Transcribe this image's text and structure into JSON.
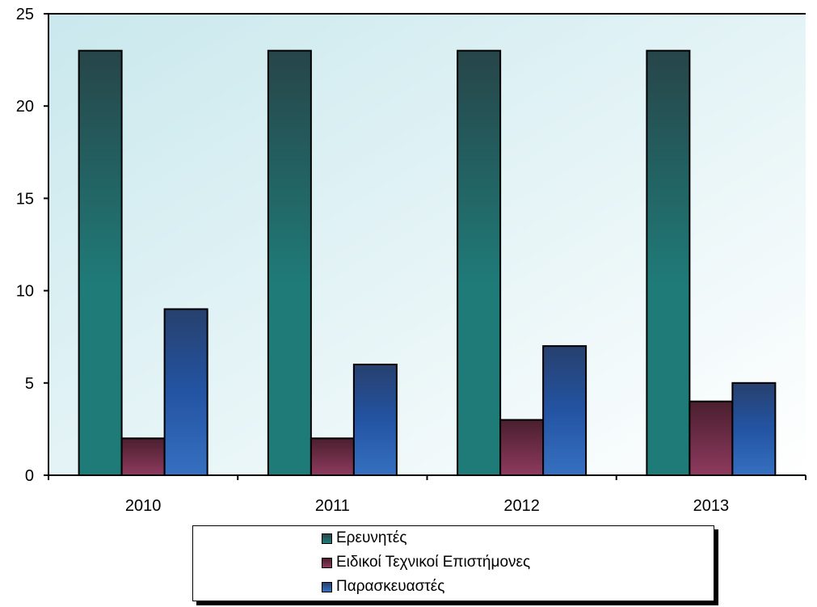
{
  "chart_data": {
    "type": "bar",
    "categories": [
      "2010",
      "2011",
      "2012",
      "2013"
    ],
    "series": [
      {
        "name": "Ερευνητές",
        "values": [
          23,
          23,
          23,
          23
        ],
        "color": "#1f7b78"
      },
      {
        "name": "Ειδικοί Τεχνικοί Επιστήμονες",
        "values": [
          2,
          2,
          3,
          4
        ],
        "color": "#7a2c4a"
      },
      {
        "name": "Παρασκευαστές",
        "values": [
          9,
          6,
          7,
          5
        ],
        "color": "#2a5aa8"
      }
    ],
    "ylim": [
      0,
      25
    ],
    "yticks": [
      0,
      5,
      10,
      15,
      20,
      25
    ],
    "title": "",
    "xlabel": "",
    "ylabel": "",
    "legend_position": "bottom",
    "grid": false
  }
}
